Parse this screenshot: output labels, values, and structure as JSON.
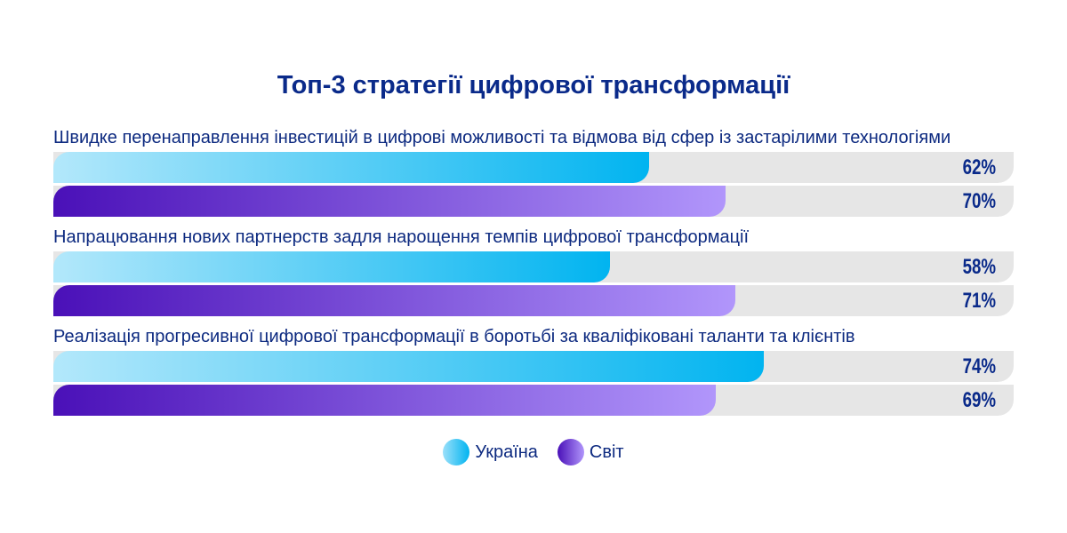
{
  "chart_data": {
    "type": "bar",
    "orientation": "horizontal",
    "title": "Топ-3 стратегії цифрової трансформації",
    "categories": [
      "Швидке перенаправлення інвестицій в цифрові можливості та відмова від сфер із застарілими технологіями",
      "Напрацювання нових партнерств задля нарощення темпів цифрової трансформації",
      "Реалізація прогресивної цифрової трансформації в боротьбі за кваліфіковані таланти та клієнтів"
    ],
    "series": [
      {
        "name": "Україна",
        "values": [
          62,
          58,
          74
        ],
        "labels": [
          "62%",
          "58%",
          "74%"
        ],
        "color": "#01b4f0"
      },
      {
        "name": "Світ",
        "values": [
          70,
          71,
          69
        ],
        "labels": [
          "70%",
          "71%",
          "69%"
        ],
        "color": "#6a2ad0"
      }
    ],
    "xlim": [
      0,
      100
    ],
    "legend": "bottom-center"
  }
}
